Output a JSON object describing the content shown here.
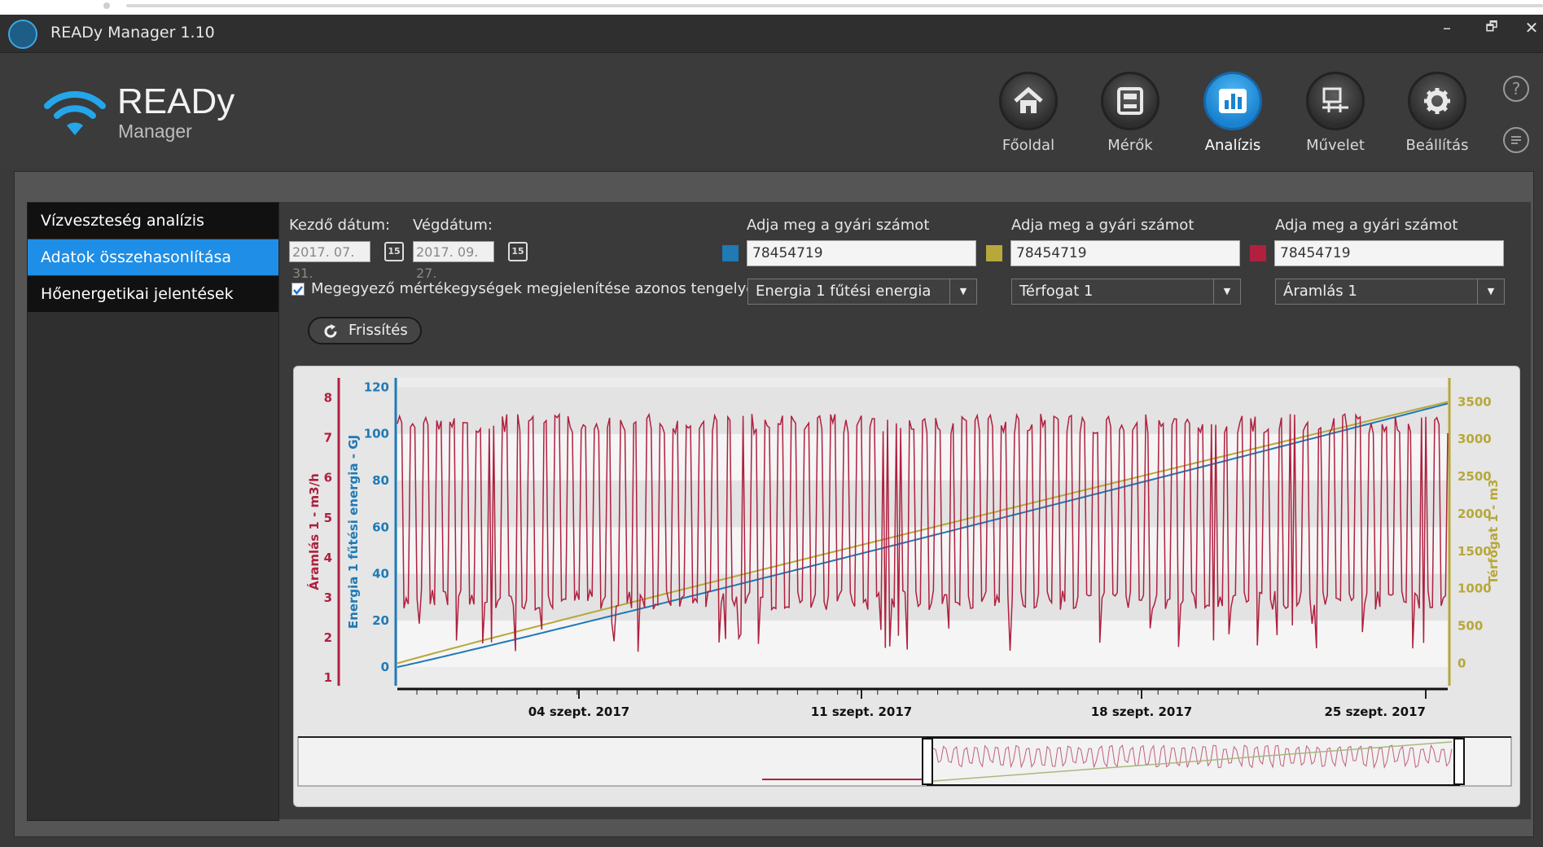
{
  "window": {
    "title": "READy Manager 1.10",
    "controls": [
      "–",
      "🗗",
      "✕"
    ]
  },
  "logo": {
    "name": "READy",
    "sub": "Manager"
  },
  "nav": [
    {
      "label": "Főoldal",
      "icon": "home-icon",
      "active": false
    },
    {
      "label": "Mérők",
      "icon": "meter-icon",
      "active": false
    },
    {
      "label": "Analízis",
      "icon": "chart-icon",
      "active": true
    },
    {
      "label": "Művelet",
      "icon": "operation-icon",
      "active": false
    },
    {
      "label": "Beállítás",
      "icon": "gear-icon",
      "active": false
    }
  ],
  "help": "?",
  "sidebar": {
    "items": [
      {
        "label": "Vízveszteség analízis",
        "active": false
      },
      {
        "label": "Adatok összehasonlítása",
        "active": true
      },
      {
        "label": "Hőenergetikai jelentések",
        "active": false
      }
    ]
  },
  "filters": {
    "start_label": "Kezdő dátum:",
    "end_label": "Végdátum:",
    "start_value": "2017. 07. 31.",
    "end_value": "2017. 09. 27.",
    "calendar_icon_text": "15",
    "checkbox_label": "Megegyező mértékegységek megjelenítése azonos tengelyen",
    "checkbox_checked": true,
    "refresh_label": "Frissítés"
  },
  "meters": [
    {
      "label": "Adja meg a gyári számot",
      "serial": "78454719",
      "color": "#1f7ab5",
      "selection": "Energia 1 fűtési energia"
    },
    {
      "label": "Adja meg a gyári számot",
      "serial": "78454719",
      "color": "#b7a83a",
      "selection": "Térfogat 1"
    },
    {
      "label": "Adja meg a gyári számot",
      "serial": "78454719",
      "color": "#b0203f",
      "selection": "Áramlás 1"
    }
  ],
  "chart_data": {
    "type": "line",
    "x_ticks": [
      "04 szept. 2017",
      "11 szept. 2017",
      "18 szept. 2017",
      "25 szept. 2017"
    ],
    "axes": [
      {
        "label": "Áramlás 1 - m3/h",
        "side": "left",
        "color": "#b0203f",
        "ticks": [
          1,
          2,
          3,
          4,
          5,
          6,
          7,
          8
        ],
        "range": [
          0.8,
          8.5
        ]
      },
      {
        "label": "Energia 1 fűtési energia - GJ",
        "side": "left",
        "color": "#1f7ab5",
        "ticks": [
          0,
          20,
          40,
          60,
          80,
          100,
          120
        ],
        "range": [
          -8,
          124
        ]
      },
      {
        "label": "Térfogat 1 - m3",
        "side": "right",
        "color": "#b7a83a",
        "ticks": [
          0,
          500,
          1000,
          1500,
          2000,
          2500,
          3000,
          3500
        ],
        "range": [
          -300,
          3820
        ]
      }
    ],
    "series": [
      {
        "axis": 1,
        "color": "#1f7ab5",
        "start": 0,
        "end": 113
      },
      {
        "axis": 2,
        "color": "#b7a83a",
        "start": 0,
        "end": 3500
      },
      {
        "axis": 0,
        "color": "#b0203f",
        "low": 2.7,
        "high": 7.6
      }
    ]
  }
}
